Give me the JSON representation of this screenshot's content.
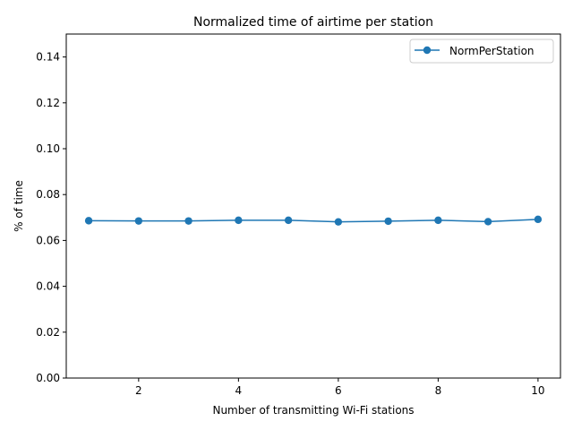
{
  "chart_data": {
    "type": "line",
    "title": "Normalized time of airtime per station",
    "xlabel": "Number of transmitting Wi-Fi stations",
    "ylabel": "% of time",
    "xlim": [
      0.55,
      10.45
    ],
    "ylim": [
      0.0,
      0.15
    ],
    "xticks": [
      2,
      4,
      6,
      8,
      10
    ],
    "yticks": [
      0.0,
      0.02,
      0.04,
      0.06,
      0.08,
      0.1,
      0.12,
      0.14
    ],
    "ytick_labels": [
      "0.00",
      "0.02",
      "0.04",
      "0.06",
      "0.08",
      "0.10",
      "0.12",
      "0.14"
    ],
    "grid": false,
    "legend_position": "top-right",
    "series": [
      {
        "name": "NormPerStation",
        "color": "#1f77b4",
        "marker": "circle",
        "x": [
          1,
          2,
          3,
          4,
          5,
          6,
          7,
          8,
          9,
          10
        ],
        "y": [
          0.0686,
          0.0685,
          0.0685,
          0.0688,
          0.0688,
          0.0681,
          0.0684,
          0.0688,
          0.0682,
          0.0692
        ]
      }
    ]
  }
}
